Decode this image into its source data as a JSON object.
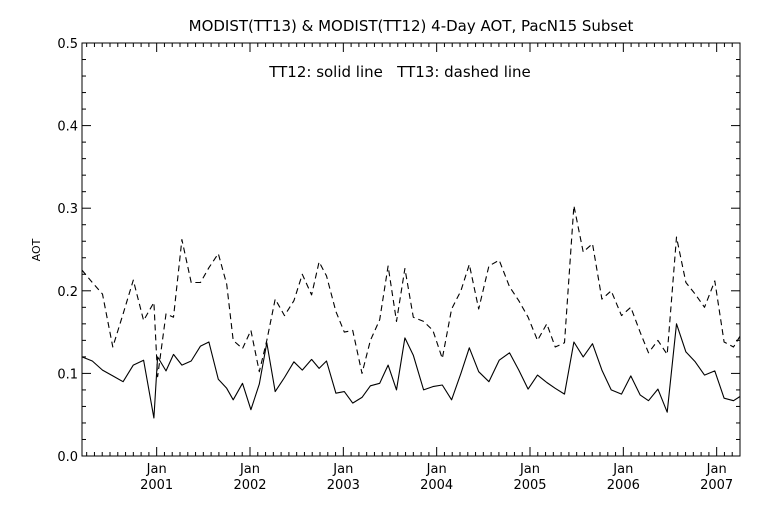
{
  "chart_data": {
    "type": "line",
    "title": "MODIST(TT13) & MODIST(TT12) 4-Day AOT, PacN15 Subset",
    "annotation": "TT12: solid line   TT13: dashed line",
    "ylabel": "AOT",
    "ylim": [
      0.0,
      0.5
    ],
    "yticks": [
      "0.0",
      "0.1",
      "0.2",
      "0.3",
      "0.4",
      "0.5"
    ],
    "yticks_values": [
      0.0,
      0.1,
      0.2,
      0.3,
      0.4,
      0.5
    ],
    "xlim": [
      2000.2,
      2007.25
    ],
    "x_ticks": [
      {
        "x": 2001.0,
        "month": "Jan",
        "year": "2001"
      },
      {
        "x": 2002.0,
        "month": "Jan",
        "year": "2002"
      },
      {
        "x": 2003.0,
        "month": "Jan",
        "year": "2003"
      },
      {
        "x": 2004.0,
        "month": "Jan",
        "year": "2004"
      },
      {
        "x": 2005.0,
        "month": "Jan",
        "year": "2005"
      },
      {
        "x": 2006.0,
        "month": "Jan",
        "year": "2006"
      },
      {
        "x": 2007.0,
        "month": "Jan",
        "year": "2007"
      }
    ],
    "grid": false,
    "series": [
      {
        "name": "TT12",
        "style": "solid",
        "x": [
          2000.2,
          2000.31,
          2000.42,
          2000.53,
          2000.64,
          2000.75,
          2000.86,
          2000.97,
          2001.01,
          2001.1,
          2001.18,
          2001.27,
          2001.37,
          2001.47,
          2001.56,
          2001.66,
          2001.75,
          2001.82,
          2001.92,
          2002.01,
          2002.1,
          2002.18,
          2002.27,
          2002.37,
          2002.47,
          2002.56,
          2002.66,
          2002.74,
          2002.82,
          2002.92,
          2003.01,
          2003.1,
          2003.2,
          2003.29,
          2003.39,
          2003.48,
          2003.57,
          2003.66,
          2003.75,
          2003.86,
          2003.96,
          2004.06,
          2004.16,
          2004.26,
          2004.35,
          2004.45,
          2004.56,
          2004.67,
          2004.78,
          2004.88,
          2004.98,
          2005.08,
          2005.18,
          2005.27,
          2005.37,
          2005.47,
          2005.57,
          2005.67,
          2005.77,
          2005.87,
          2005.98,
          2006.08,
          2006.18,
          2006.27,
          2006.37,
          2006.47,
          2006.57,
          2006.67,
          2006.77,
          2006.87,
          2006.98,
          2007.08,
          2007.18,
          2007.25
        ],
        "values": [
          0.12,
          0.115,
          0.104,
          0.097,
          0.09,
          0.11,
          0.116,
          0.046,
          0.12,
          0.103,
          0.123,
          0.11,
          0.115,
          0.133,
          0.138,
          0.093,
          0.082,
          0.068,
          0.088,
          0.056,
          0.087,
          0.137,
          0.078,
          0.095,
          0.114,
          0.104,
          0.117,
          0.106,
          0.115,
          0.076,
          0.078,
          0.064,
          0.071,
          0.085,
          0.088,
          0.11,
          0.08,
          0.143,
          0.122,
          0.08,
          0.084,
          0.086,
          0.068,
          0.1,
          0.131,
          0.102,
          0.09,
          0.116,
          0.125,
          0.104,
          0.081,
          0.098,
          0.089,
          0.082,
          0.075,
          0.138,
          0.12,
          0.136,
          0.104,
          0.08,
          0.075,
          0.097,
          0.074,
          0.067,
          0.081,
          0.053,
          0.16,
          0.126,
          0.114,
          0.098,
          0.103,
          0.07,
          0.067,
          0.072
        ]
      },
      {
        "name": "TT13",
        "style": "dashed",
        "x": [
          2000.2,
          2000.31,
          2000.42,
          2000.53,
          2000.64,
          2000.75,
          2000.86,
          2000.97,
          2001.01,
          2001.1,
          2001.18,
          2001.27,
          2001.37,
          2001.47,
          2001.56,
          2001.66,
          2001.75,
          2001.82,
          2001.92,
          2002.01,
          2002.1,
          2002.18,
          2002.27,
          2002.37,
          2002.47,
          2002.56,
          2002.66,
          2002.74,
          2002.82,
          2002.92,
          2003.01,
          2003.1,
          2003.2,
          2003.29,
          2003.39,
          2003.48,
          2003.57,
          2003.66,
          2003.75,
          2003.86,
          2003.96,
          2004.06,
          2004.16,
          2004.26,
          2004.35,
          2004.45,
          2004.56,
          2004.67,
          2004.78,
          2004.88,
          2004.98,
          2005.08,
          2005.18,
          2005.27,
          2005.37,
          2005.47,
          2005.57,
          2005.67,
          2005.77,
          2005.87,
          2005.98,
          2006.08,
          2006.18,
          2006.27,
          2006.37,
          2006.47,
          2006.57,
          2006.67,
          2006.77,
          2006.87,
          2006.98,
          2007.08,
          2007.18,
          2007.25
        ],
        "values": [
          0.225,
          0.21,
          0.196,
          0.132,
          0.172,
          0.213,
          0.164,
          0.186,
          0.096,
          0.172,
          0.168,
          0.262,
          0.21,
          0.21,
          0.228,
          0.245,
          0.208,
          0.14,
          0.13,
          0.152,
          0.102,
          0.14,
          0.19,
          0.17,
          0.188,
          0.22,
          0.195,
          0.235,
          0.218,
          0.175,
          0.15,
          0.152,
          0.1,
          0.14,
          0.165,
          0.23,
          0.163,
          0.227,
          0.168,
          0.163,
          0.152,
          0.118,
          0.178,
          0.2,
          0.232,
          0.178,
          0.23,
          0.237,
          0.205,
          0.188,
          0.168,
          0.14,
          0.16,
          0.132,
          0.137,
          0.303,
          0.247,
          0.257,
          0.19,
          0.2,
          0.17,
          0.18,
          0.15,
          0.125,
          0.14,
          0.123,
          0.265,
          0.21,
          0.196,
          0.18,
          0.212,
          0.138,
          0.132,
          0.145
        ]
      }
    ]
  }
}
